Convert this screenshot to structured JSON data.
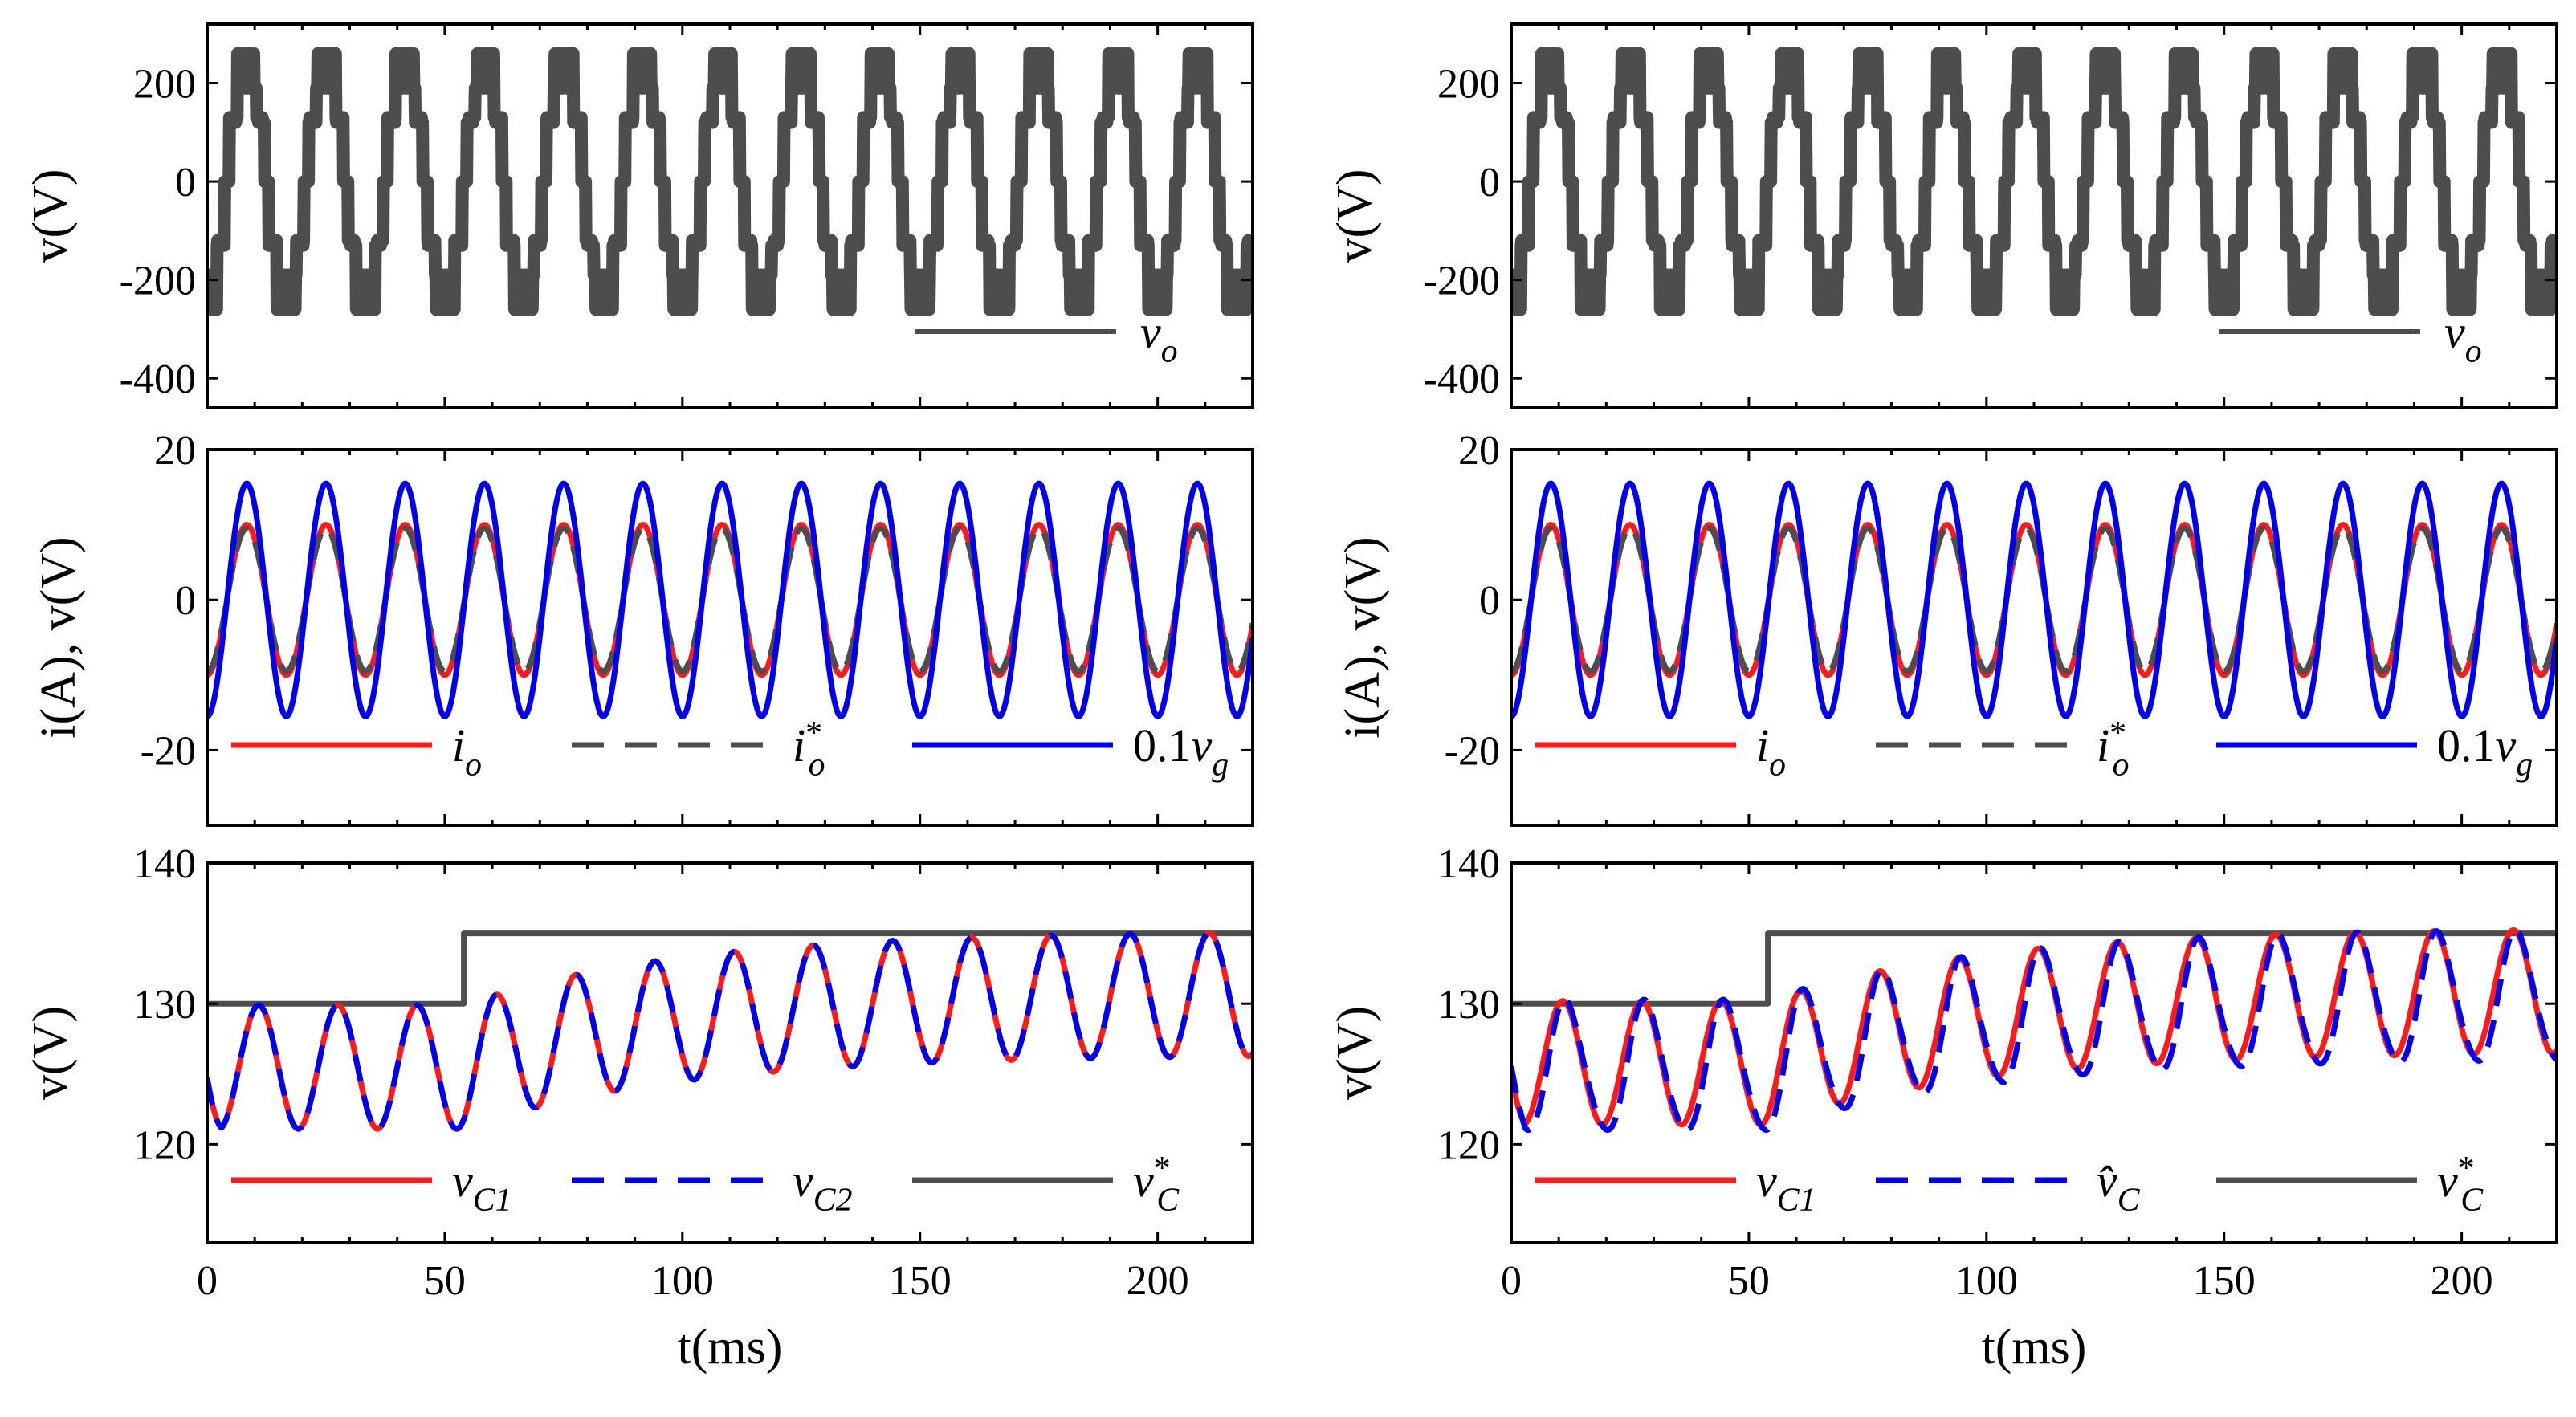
{
  "chart_data": [
    {
      "panel": "left-top",
      "type": "line",
      "ylabel": "v(V)",
      "xlabel": "",
      "xlim": [
        0,
        220
      ],
      "ylim": [
        -460,
        320
      ],
      "yticks": [
        200,
        0,
        -200,
        -400
      ],
      "ytick_labels": [
        "200",
        "0",
        "-200",
        "-400"
      ],
      "xticks": [
        0,
        50,
        100,
        150,
        200
      ],
      "show_xticklabels": false,
      "legend": {
        "position": "bottom-right",
        "entries": [
          {
            "label": "v_o",
            "color": "#4d4d4d",
            "dash": "solid"
          }
        ]
      },
      "series": [
        {
          "name": "v_o",
          "kind": "multilevel",
          "period_ms": 16.67,
          "levels": [
            0,
            130,
            260
          ],
          "color": "#4d4d4d"
        }
      ]
    },
    {
      "panel": "left-middle",
      "type": "line",
      "ylabel": "i(A), v(V)",
      "xlabel": "",
      "xlim": [
        0,
        220
      ],
      "ylim": [
        -30,
        20
      ],
      "yticks": [
        20,
        0,
        -20
      ],
      "ytick_labels": [
        "20",
        "0",
        "-20"
      ],
      "xticks": [
        0,
        50,
        100,
        150,
        200
      ],
      "show_xticklabels": false,
      "legend": {
        "position": "bottom",
        "entries": [
          {
            "label": "i_o",
            "color": "#ff1a1a",
            "dash": "solid"
          },
          {
            "label": "i_o*",
            "color": "#4d4d4d",
            "dash": "dashed"
          },
          {
            "label": "0.1v_g",
            "color": "#0000ee",
            "dash": "solid"
          }
        ]
      },
      "series": [
        {
          "name": "i_o",
          "kind": "sine",
          "amplitude": 10,
          "period_ms": 16.67,
          "color": "#ff1a1a",
          "dash": "solid"
        },
        {
          "name": "i_o*",
          "kind": "sine",
          "amplitude": 9.5,
          "period_ms": 16.67,
          "color": "#4d4d4d",
          "dash": "dashed"
        },
        {
          "name": "0.1v_g",
          "kind": "sine",
          "amplitude": 15.5,
          "period_ms": 16.67,
          "color": "#0000ee",
          "dash": "solid"
        }
      ]
    },
    {
      "panel": "left-bottom",
      "type": "line",
      "ylabel": "v(V)",
      "xlabel": "t(ms)",
      "xlim": [
        0,
        220
      ],
      "ylim": [
        113,
        140
      ],
      "yticks": [
        140,
        130,
        120
      ],
      "ytick_labels": [
        "140",
        "130",
        "120"
      ],
      "xticks": [
        0,
        50,
        100,
        150,
        200
      ],
      "xtick_labels": [
        "0",
        "50",
        "100",
        "150",
        "200"
      ],
      "show_xticklabels": true,
      "legend": {
        "position": "bottom",
        "entries": [
          {
            "label": "v_C1",
            "color": "#ff1a1a",
            "dash": "solid"
          },
          {
            "label": "v_C2",
            "color": "#0000ee",
            "dash": "dashed"
          },
          {
            "label": "v_C*",
            "color": "#4d4d4d",
            "dash": "solid"
          }
        ]
      },
      "series": [
        {
          "name": "v_C*",
          "kind": "step",
          "step_at_ms": 54,
          "before": 130,
          "after": 135,
          "color": "#4d4d4d",
          "dash": "solid"
        },
        {
          "name": "v_C1",
          "kind": "ripple",
          "period_ms": 16.67,
          "center_before": 125.5,
          "center_after": 130.8,
          "amplitude": 4.4,
          "color": "#ff1a1a",
          "dash": "solid"
        },
        {
          "name": "v_C2",
          "kind": "ripple",
          "period_ms": 16.67,
          "center_before": 125.5,
          "center_after": 130.8,
          "amplitude": 4.4,
          "color": "#0000ee",
          "dash": "dashed"
        }
      ]
    },
    {
      "panel": "right-top",
      "type": "line",
      "ylabel": "v(V)",
      "xlabel": "",
      "xlim": [
        0,
        220
      ],
      "ylim": [
        -460,
        320
      ],
      "yticks": [
        200,
        0,
        -200,
        -400
      ],
      "ytick_labels": [
        "200",
        "0",
        "-200",
        "-400"
      ],
      "xticks": [
        0,
        50,
        100,
        150,
        200
      ],
      "show_xticklabels": false,
      "legend": {
        "position": "bottom-right",
        "entries": [
          {
            "label": "v_o",
            "color": "#4d4d4d",
            "dash": "solid"
          }
        ]
      },
      "series": [
        {
          "name": "v_o",
          "kind": "multilevel",
          "period_ms": 16.67,
          "levels": [
            0,
            130,
            260
          ],
          "color": "#4d4d4d"
        }
      ]
    },
    {
      "panel": "right-middle",
      "type": "line",
      "ylabel": "i(A), v(V)",
      "xlabel": "",
      "xlim": [
        0,
        220
      ],
      "ylim": [
        -30,
        20
      ],
      "yticks": [
        20,
        0,
        -20
      ],
      "ytick_labels": [
        "20",
        "0",
        "-20"
      ],
      "xticks": [
        0,
        50,
        100,
        150,
        200
      ],
      "show_xticklabels": false,
      "legend": {
        "position": "bottom",
        "entries": [
          {
            "label": "i_o",
            "color": "#ff1a1a",
            "dash": "solid"
          },
          {
            "label": "i_o*",
            "color": "#4d4d4d",
            "dash": "dashed"
          },
          {
            "label": "0.1v_g",
            "color": "#0000ee",
            "dash": "solid"
          }
        ]
      },
      "series": [
        {
          "name": "i_o",
          "kind": "sine",
          "amplitude": 10,
          "period_ms": 16.67,
          "color": "#ff1a1a",
          "dash": "solid"
        },
        {
          "name": "i_o*",
          "kind": "sine",
          "amplitude": 9.5,
          "period_ms": 16.67,
          "color": "#4d4d4d",
          "dash": "dashed"
        },
        {
          "name": "0.1v_g",
          "kind": "sine",
          "amplitude": 15.5,
          "period_ms": 16.67,
          "color": "#0000ee",
          "dash": "solid"
        }
      ]
    },
    {
      "panel": "right-bottom",
      "type": "line",
      "ylabel": "v(V)",
      "xlabel": "t(ms)",
      "xlim": [
        0,
        220
      ],
      "ylim": [
        113,
        140
      ],
      "yticks": [
        140,
        130,
        120
      ],
      "ytick_labels": [
        "140",
        "130",
        "120"
      ],
      "xticks": [
        0,
        50,
        100,
        150,
        200
      ],
      "xtick_labels": [
        "0",
        "50",
        "100",
        "150",
        "200"
      ],
      "show_xticklabels": true,
      "legend": {
        "position": "bottom",
        "entries": [
          {
            "label": "v_C1",
            "color": "#ff1a1a",
            "dash": "solid"
          },
          {
            "label": "v̂_C",
            "color": "#0000ee",
            "dash": "dashed"
          },
          {
            "label": "v_C*",
            "color": "#4d4d4d",
            "dash": "solid"
          }
        ]
      },
      "series": [
        {
          "name": "v_C*",
          "kind": "step",
          "step_at_ms": 54,
          "before": 130,
          "after": 135,
          "color": "#4d4d4d",
          "dash": "solid"
        },
        {
          "name": "v_C1",
          "kind": "ripple",
          "period_ms": 16.67,
          "center_before": 125.8,
          "center_after": 131.0,
          "amplitude": 4.4,
          "color": "#ff1a1a",
          "dash": "solid"
        },
        {
          "name": "v̂_C",
          "kind": "ripple_est",
          "period_ms": 16.67,
          "center_before": 125.4,
          "center_after": 130.5,
          "amplitude": 4.6,
          "color": "#0000ee",
          "dash": "dashed"
        }
      ]
    }
  ]
}
